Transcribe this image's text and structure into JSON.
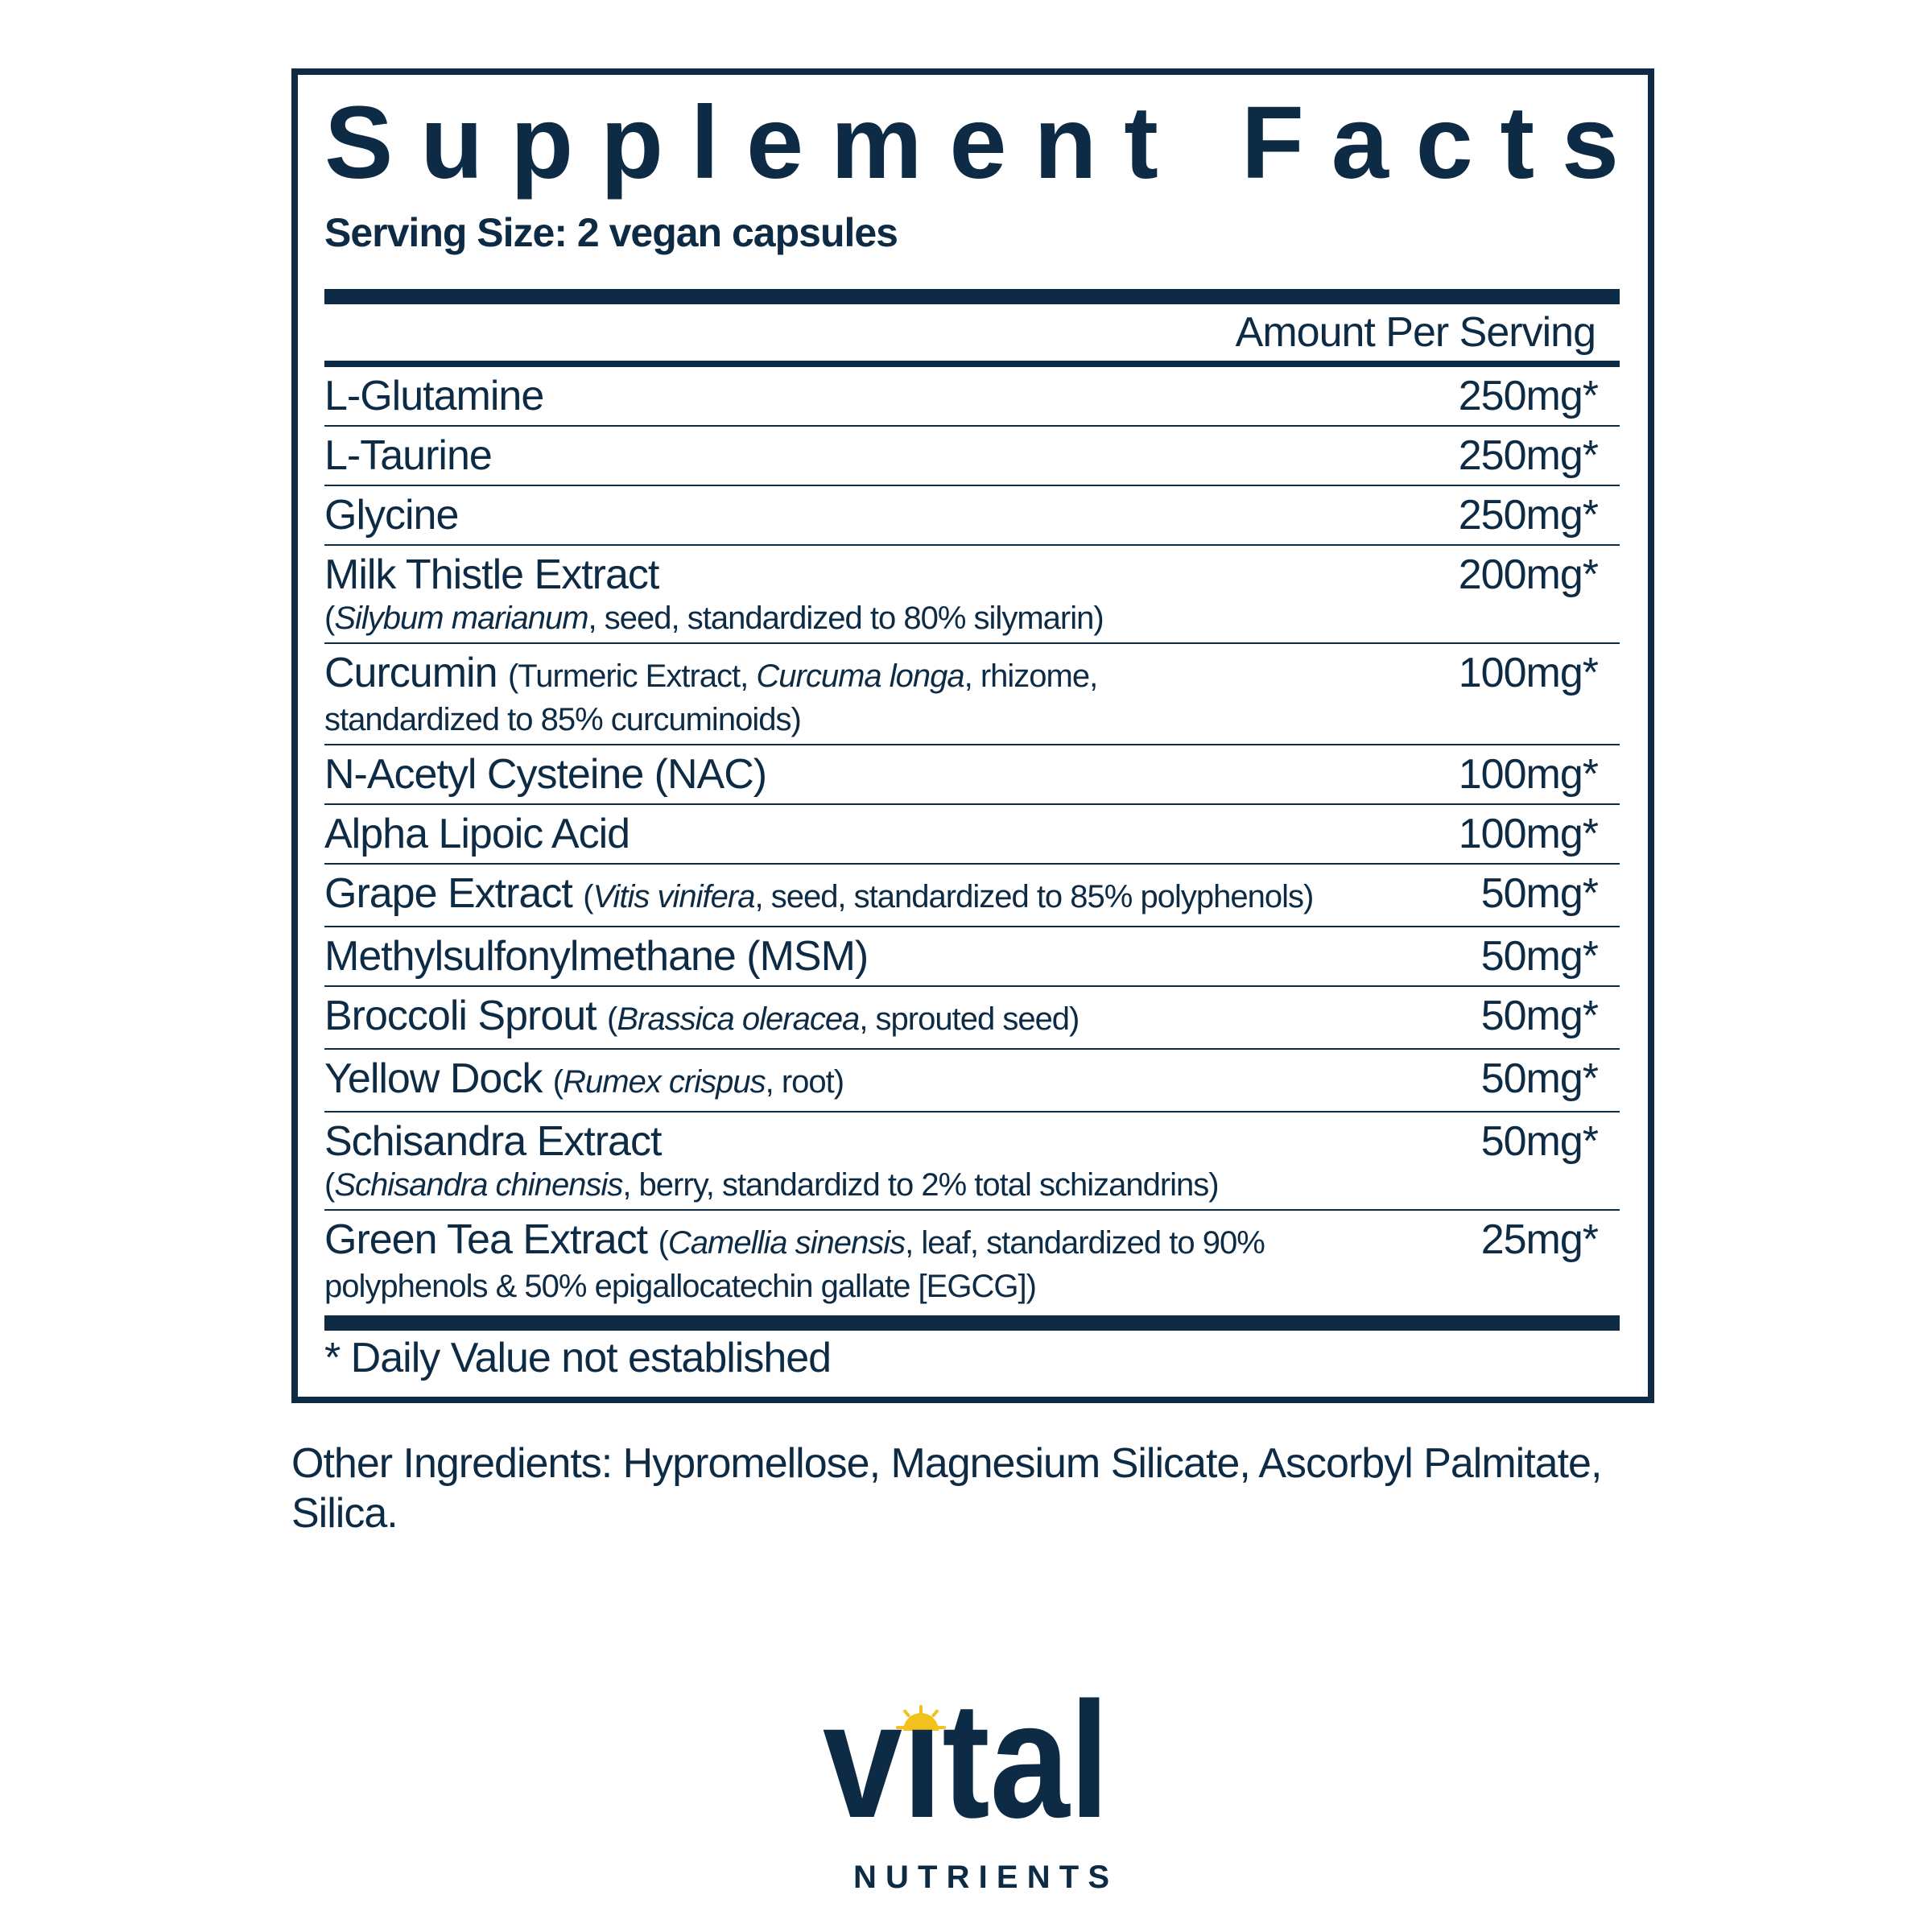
{
  "label": {
    "title": "Supplement Facts",
    "serving_size": "Serving Size: 2 vegan capsules",
    "amount_header": "Amount Per Serving",
    "ingredients": [
      {
        "lines": [
          [
            {
              "text": "L-Glutamine"
            }
          ]
        ],
        "amount": "250mg*"
      },
      {
        "lines": [
          [
            {
              "text": "L-Taurine"
            }
          ]
        ],
        "amount": "250mg*"
      },
      {
        "lines": [
          [
            {
              "text": "Glycine"
            }
          ]
        ],
        "amount": "250mg*"
      },
      {
        "lines": [
          [
            {
              "text": "Milk Thistle Extract"
            }
          ],
          [
            {
              "text": "(",
              "sub": true
            },
            {
              "text": "Silybum marianum",
              "italic": true,
              "sub": true
            },
            {
              "text": ", seed, standardized to 80% silymarin)",
              "sub": true
            }
          ]
        ],
        "amount": "200mg*"
      },
      {
        "lines": [
          [
            {
              "text": "Curcumin "
            },
            {
              "text": "(Turmeric Extract, ",
              "small": true
            },
            {
              "text": "Curcuma longa",
              "italic": true,
              "small": true
            },
            {
              "text": ", rhizome,",
              "small": true
            }
          ],
          [
            {
              "text": "standardized to 85% curcuminoids)",
              "sub": true
            }
          ]
        ],
        "amount": "100mg*"
      },
      {
        "lines": [
          [
            {
              "text": "N-Acetyl Cysteine (NAC)"
            }
          ]
        ],
        "amount": "100mg*"
      },
      {
        "lines": [
          [
            {
              "text": "Alpha Lipoic Acid"
            }
          ]
        ],
        "amount": "100mg*"
      },
      {
        "lines": [
          [
            {
              "text": "Grape Extract "
            },
            {
              "text": "(",
              "small": true
            },
            {
              "text": "Vitis vinifera",
              "italic": true,
              "small": true
            },
            {
              "text": ", seed, standardized to 85% polyphenols)",
              "small": true
            }
          ]
        ],
        "amount": "50mg*"
      },
      {
        "lines": [
          [
            {
              "text": "Methylsulfonylmethane (MSM)"
            }
          ]
        ],
        "amount": "50mg*"
      },
      {
        "lines": [
          [
            {
              "text": "Broccoli Sprout "
            },
            {
              "text": "(",
              "small": true
            },
            {
              "text": "Brassica oleracea",
              "italic": true,
              "small": true
            },
            {
              "text": ", sprouted seed)",
              "small": true
            }
          ]
        ],
        "amount": "50mg*"
      },
      {
        "lines": [
          [
            {
              "text": "Yellow Dock "
            },
            {
              "text": "(",
              "small": true
            },
            {
              "text": "Rumex crispus",
              "italic": true,
              "small": true
            },
            {
              "text": ", root)",
              "small": true
            }
          ]
        ],
        "amount": "50mg*"
      },
      {
        "lines": [
          [
            {
              "text": "Schisandra Extract"
            }
          ],
          [
            {
              "text": "(",
              "sub": true
            },
            {
              "text": "Schisandra chinensis",
              "italic": true,
              "sub": true
            },
            {
              "text": ", berry, standardizd to 2% total schizandrins)",
              "sub": true
            }
          ]
        ],
        "amount": "50mg*"
      },
      {
        "lines": [
          [
            {
              "text": "Green Tea Extract "
            },
            {
              "text": "(",
              "small": true
            },
            {
              "text": "Camellia sinensis",
              "italic": true,
              "small": true
            },
            {
              "text": ", leaf, standardized to 90%",
              "small": true
            }
          ],
          [
            {
              "text": "polyphenols & 50% epigallocatechin gallate [EGCG])",
              "sub": true
            }
          ]
        ],
        "amount": "25mg*"
      }
    ],
    "footnote": "* Daily Value not established"
  },
  "other_ingredients": "Other Ingredients: Hypromellose, Magnesium Silicate, Ascorbyl Palmitate, Silica.",
  "logo": {
    "word": "vital",
    "subword": "NUTRIENTS"
  },
  "colors": {
    "text": "#0d2b45",
    "sun": "#f2c11b",
    "background": "#ffffff"
  }
}
